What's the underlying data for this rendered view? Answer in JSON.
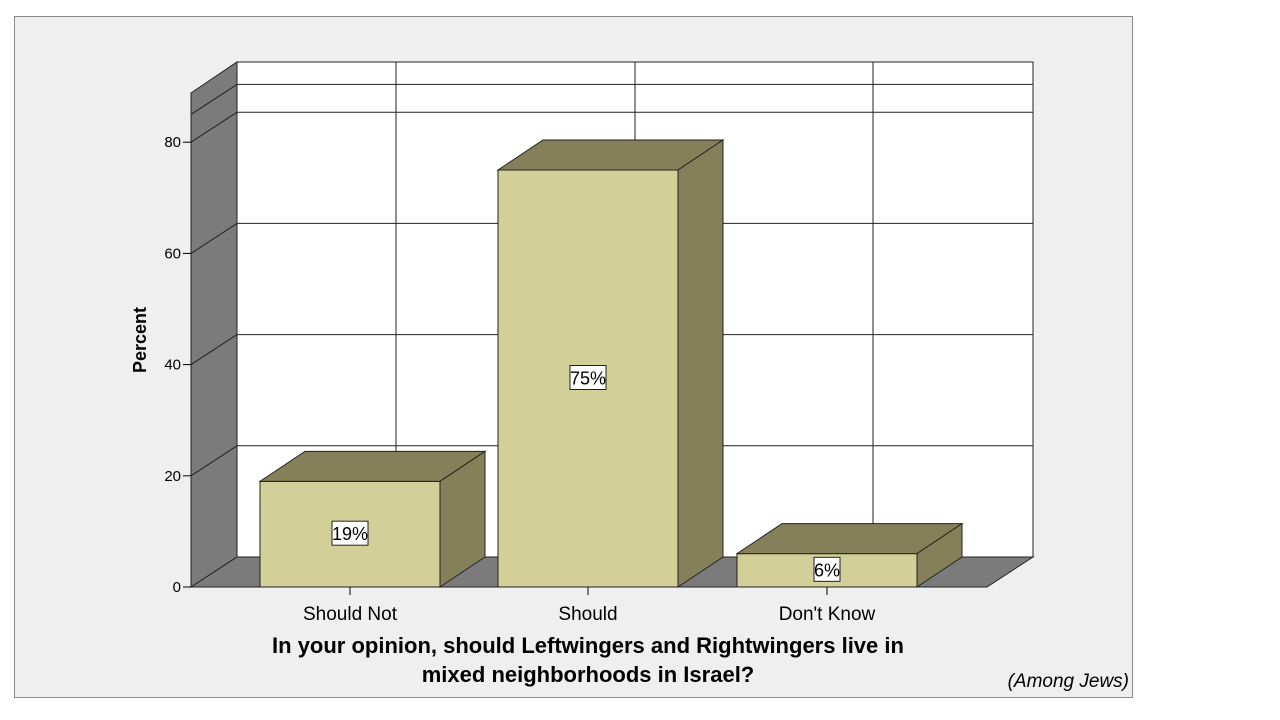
{
  "chart_data": {
    "type": "bar",
    "style": "3d",
    "title_lines": [
      "In your opinion, should Leftwingers and Rightwingers live in",
      "mixed neighborhoods in Israel?"
    ],
    "note": "(Among Jews)",
    "xlabel": "",
    "ylabel": "Percent",
    "categories": [
      "Should Not",
      "Should",
      "Don't Know"
    ],
    "values": [
      19,
      75,
      6
    ],
    "data_labels": [
      "19%",
      "75%",
      "6%"
    ],
    "ylim": [
      0,
      90
    ],
    "yticks": [
      0,
      20,
      40,
      60,
      80
    ],
    "grid": true,
    "colors": {
      "bar_front": "#d3cf98",
      "bar_side": "#857f5a",
      "bar_top": "#857f5a",
      "wall_side": "#7b7b7b",
      "floor": "#7b7b7b",
      "back_wall": "#ffffff",
      "frame_bg": "#efefef"
    }
  }
}
